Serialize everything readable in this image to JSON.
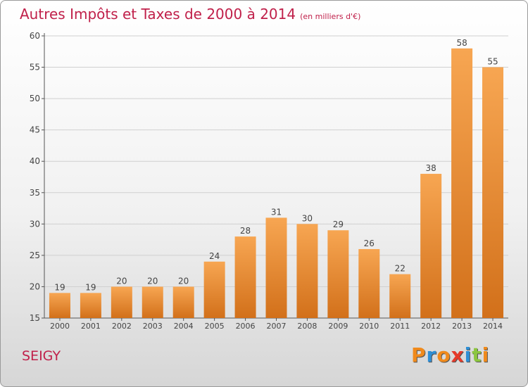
{
  "chart_data": {
    "type": "bar",
    "title": "Autres Impôts et Taxes de 2000 à 2014",
    "subtitle": "(en milliers d'€)",
    "categories": [
      "2000",
      "2001",
      "2002",
      "2003",
      "2004",
      "2005",
      "2006",
      "2007",
      "2008",
      "2009",
      "2010",
      "2011",
      "2012",
      "2013",
      "2014"
    ],
    "values": [
      19,
      19,
      20,
      20,
      20,
      24,
      28,
      31,
      30,
      29,
      26,
      22,
      38,
      58,
      55
    ],
    "ylim": [
      15,
      60
    ],
    "yticks": [
      15,
      20,
      25,
      30,
      35,
      40,
      45,
      50,
      55,
      60
    ],
    "grid": true,
    "bar_color": "#f0903a",
    "xlabel": "",
    "ylabel": ""
  },
  "footer": {
    "commune": "SEIGY",
    "logo": {
      "text": "Proxiti",
      "letters": [
        "P",
        "r",
        "o",
        "x",
        "i",
        "t",
        "i"
      ],
      "colors": [
        "#f08a1c",
        "#2e8fd6",
        "#f08a1c",
        "#e63a2a",
        "#2e8fd6",
        "#8cc63f",
        "#f08a1c"
      ]
    }
  }
}
